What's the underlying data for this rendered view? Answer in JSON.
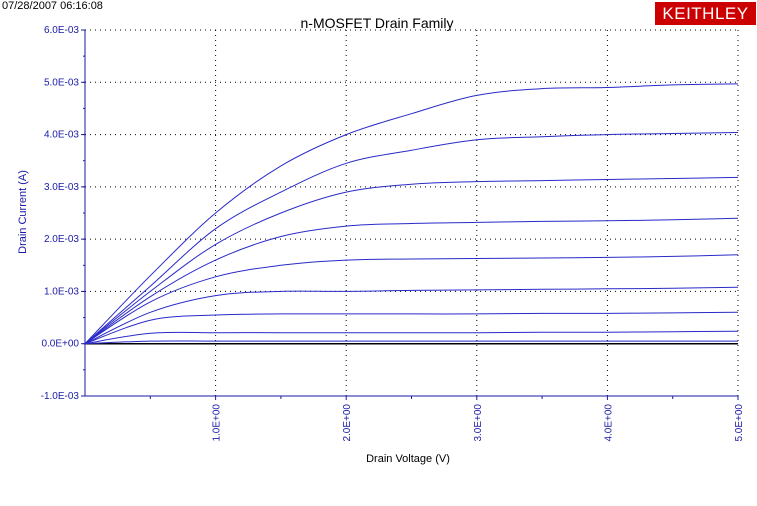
{
  "header": {
    "timestamp": "07/28/2007 06:16:08",
    "brand_logo": "KEITHLEY"
  },
  "colors": {
    "curve": "#2a2ac8",
    "axis": "#1a1aa6",
    "grid": "#000000",
    "logo_bg": "#cc0000"
  },
  "chart_data": {
    "type": "line",
    "title": "n-MOSFET Drain Family",
    "xlabel": "Drain Voltage (V)",
    "ylabel": "Drain Current (A)",
    "xlim": [
      0,
      5
    ],
    "ylim": [
      -0.001,
      0.006
    ],
    "grid": true,
    "x_ticks": [
      1,
      2,
      3,
      4,
      5
    ],
    "x_tick_labels": [
      "1.0E+00",
      "2.0E+00",
      "3.0E+00",
      "4.0E+00",
      "5.0E+00"
    ],
    "y_ticks": [
      -0.001,
      0,
      0.001,
      0.002,
      0.003,
      0.004,
      0.005,
      0.006
    ],
    "y_tick_labels": [
      "-1.0E-03",
      "0.0E+00",
      "1.0E-03",
      "2.0E-03",
      "3.0E-03",
      "4.0E-03",
      "5.0E-03",
      "6.0E-03"
    ],
    "x": [
      0,
      0.5,
      1.0,
      1.5,
      2.0,
      2.5,
      3.0,
      3.5,
      4.0,
      4.5,
      5.0
    ],
    "series": [
      {
        "values": [
          0,
          5e-05,
          5e-05,
          5e-05,
          5e-05,
          5e-05,
          5e-05,
          5e-05,
          5e-05,
          5e-05,
          5e-05
        ]
      },
      {
        "values": [
          0,
          0.0002,
          0.00021,
          0.00021,
          0.00021,
          0.00021,
          0.00021,
          0.00022,
          0.00022,
          0.00023,
          0.00024
        ]
      },
      {
        "values": [
          0,
          0.00045,
          0.00055,
          0.00057,
          0.00057,
          0.00057,
          0.00057,
          0.00058,
          0.00058,
          0.00059,
          0.0006
        ]
      },
      {
        "values": [
          0,
          0.0006,
          0.00092,
          0.001,
          0.001,
          0.00102,
          0.00103,
          0.00104,
          0.00105,
          0.00106,
          0.00108
        ]
      },
      {
        "values": [
          0,
          0.0008,
          0.00128,
          0.0015,
          0.0016,
          0.00162,
          0.00163,
          0.00164,
          0.00165,
          0.00167,
          0.0017
        ]
      },
      {
        "values": [
          0,
          0.0009,
          0.0016,
          0.00205,
          0.00225,
          0.0023,
          0.00232,
          0.00234,
          0.00235,
          0.00237,
          0.0024
        ]
      },
      {
        "values": [
          0,
          0.001,
          0.0019,
          0.0025,
          0.0029,
          0.00305,
          0.0031,
          0.00312,
          0.00314,
          0.00316,
          0.00318
        ]
      },
      {
        "values": [
          0,
          0.0011,
          0.0022,
          0.0029,
          0.00345,
          0.0037,
          0.0039,
          0.00396,
          0.004,
          0.00402,
          0.00404
        ]
      },
      {
        "values": [
          0,
          0.0013,
          0.0025,
          0.0034,
          0.004,
          0.0044,
          0.00475,
          0.00488,
          0.0049,
          0.00495,
          0.00497
        ]
      }
    ]
  }
}
